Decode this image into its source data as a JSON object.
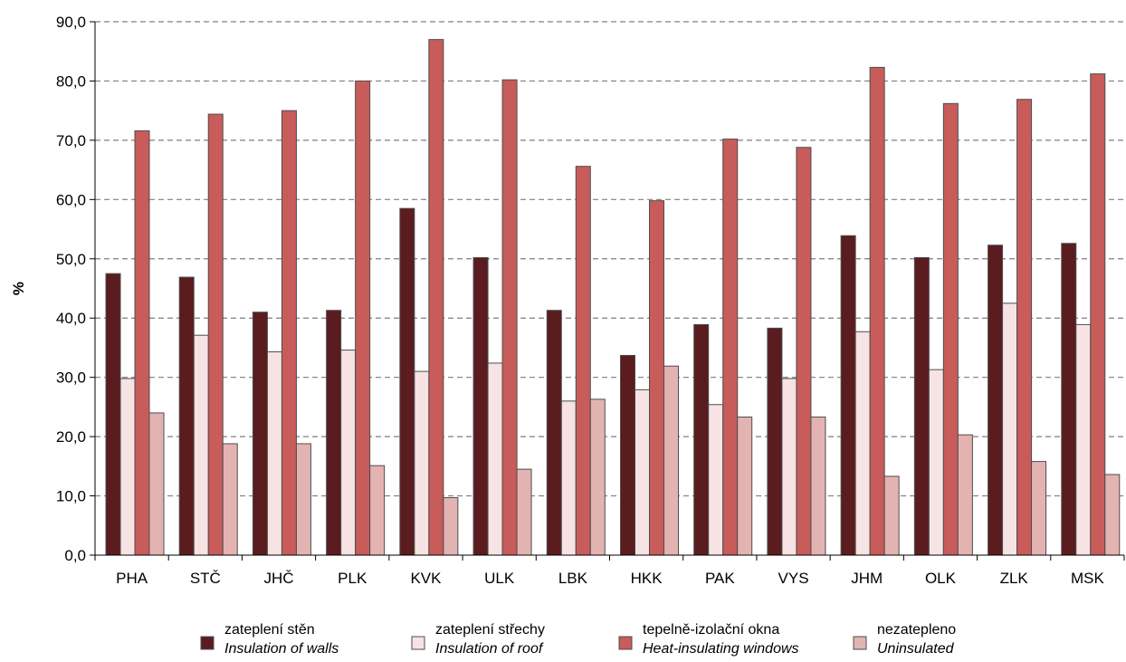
{
  "chart_data": {
    "type": "bar",
    "ylabel": "%",
    "ylim": [
      0,
      90
    ],
    "yticks": [
      "0,0",
      "10,0",
      "20,0",
      "30,0",
      "40,0",
      "50,0",
      "60,0",
      "70,0",
      "80,0",
      "90,0"
    ],
    "grid": true,
    "legend_position": "bottom",
    "categories": [
      "PHA",
      "STČ",
      "JHČ",
      "PLK",
      "KVK",
      "ULK",
      "LBK",
      "HKK",
      "PAK",
      "VYS",
      "JHM",
      "OLK",
      "ZLK",
      "MSK"
    ],
    "series": [
      {
        "name": "zateplení stěn",
        "name_en": "Insulation of walls",
        "color": "#5a1c1e",
        "values": [
          47.5,
          46.9,
          41.0,
          41.3,
          58.5,
          50.2,
          41.3,
          33.7,
          38.9,
          38.3,
          53.9,
          50.2,
          52.3,
          52.6
        ]
      },
      {
        "name": "zateplení střechy",
        "name_en": "Insulation of roof",
        "color": "#f7e3e3",
        "values": [
          29.8,
          37.1,
          34.3,
          34.6,
          31.0,
          32.4,
          26.0,
          27.9,
          25.4,
          29.8,
          37.7,
          31.3,
          42.5,
          38.9
        ]
      },
      {
        "name": "tepelně-izolační okna",
        "name_en": "Heat-insulating windows",
        "color": "#c85c5a",
        "values": [
          71.6,
          74.4,
          75.0,
          80.0,
          87.0,
          80.2,
          65.6,
          59.8,
          70.2,
          68.8,
          82.3,
          76.2,
          76.9,
          81.2
        ]
      },
      {
        "name": "nezatepleno",
        "name_en": "Uninsulated",
        "color": "#e3b3b2",
        "values": [
          24.0,
          18.8,
          18.8,
          15.1,
          9.7,
          14.5,
          26.3,
          31.9,
          23.3,
          23.3,
          13.3,
          20.3,
          15.8,
          13.6
        ]
      }
    ]
  }
}
